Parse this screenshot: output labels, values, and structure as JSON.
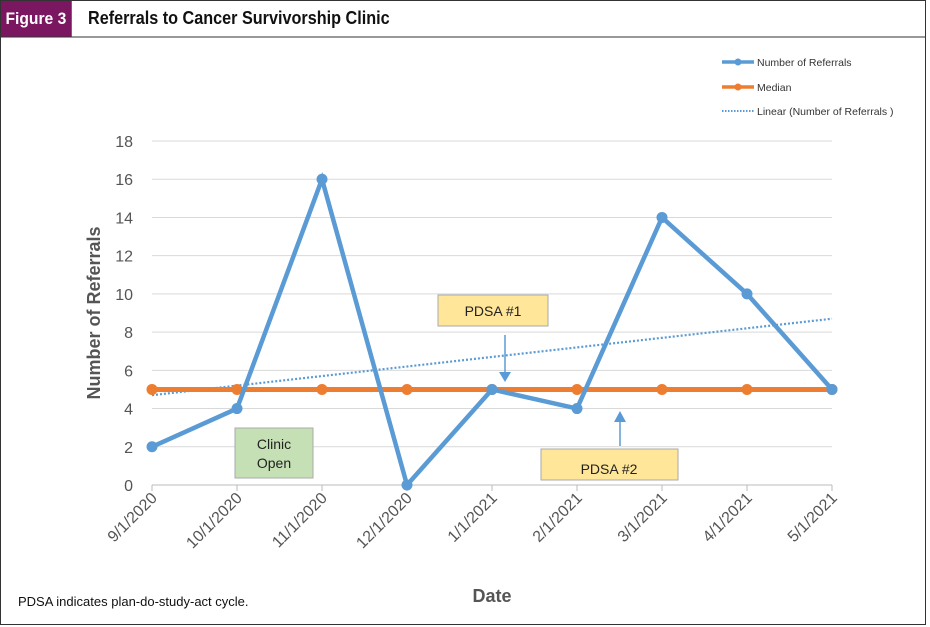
{
  "header": {
    "figure_label": "Figure 3",
    "title": "Referrals to Cancer Survivorship Clinic"
  },
  "footnote": "PDSA indicates plan-do-study-act cycle.",
  "chart_data": {
    "type": "line",
    "title": "Referrals to Cancer Survivorship Clinic",
    "xlabel": "Date",
    "ylabel": "Number of Referrals",
    "categories": [
      "9/1/2020",
      "10/1/2020",
      "11/1/2020",
      "12/1/2020",
      "1/1/2021",
      "2/1/2021",
      "3/1/2021",
      "4/1/2021",
      "5/1/2021"
    ],
    "series": [
      {
        "name": "Number of Referrals",
        "values": [
          2,
          4,
          16,
          0,
          5,
          4,
          14,
          10,
          5
        ],
        "color": "#5b9bd5"
      },
      {
        "name": "Median",
        "values": [
          5,
          5,
          5,
          5,
          5,
          5,
          5,
          5,
          5
        ],
        "color": "#ed7d31"
      },
      {
        "name": "Linear (Number of Referrals )",
        "values": [
          4.7,
          5.2,
          5.7,
          6.2,
          6.7,
          7.2,
          7.7,
          8.2,
          8.7
        ],
        "color": "#5b9bd5",
        "style": "dotted"
      }
    ],
    "ylim": [
      0,
      18
    ],
    "yticks": [
      0,
      2,
      4,
      6,
      8,
      10,
      12,
      14,
      16,
      18
    ],
    "grid": true,
    "legend": "top-right",
    "annotations": [
      {
        "text": "PDSA #1",
        "at": "1/1/2021",
        "color": "#ffe699"
      },
      {
        "text": "PDSA #2",
        "at": "2/1/2021",
        "color": "#ffe699"
      },
      {
        "text": "Clinic Open",
        "lines": [
          "Clinic",
          "Open"
        ],
        "at": "10/1/2020",
        "color": "#c5e0b4"
      }
    ]
  }
}
